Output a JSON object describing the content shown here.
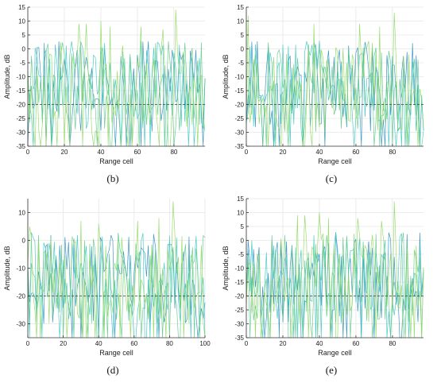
{
  "colors": {
    "series_a": "#2a8fc0",
    "series_b": "#3cc7c2",
    "series_c": "#8fd95f",
    "series_d": "#5fc98a",
    "grid": "#e6e6e6",
    "threshold": "#444444",
    "axis": "#333333"
  },
  "chart_data": [
    {
      "type": "line",
      "panel_label": "(b)",
      "xlabel": "Range cell",
      "ylabel": "Amplitude, dB",
      "xlim": [
        0,
        97
      ],
      "ylim": [
        -35,
        15
      ],
      "xticks": [
        0,
        20,
        40,
        60,
        80
      ],
      "yticks": [
        -35,
        -30,
        -25,
        -20,
        -15,
        -10,
        -5,
        0,
        5,
        10,
        15
      ],
      "grid": true,
      "threshold": -20,
      "peaks": [
        {
          "x": 28,
          "y": 9
        },
        {
          "x": 32,
          "y": 9
        },
        {
          "x": 40,
          "y": 10
        },
        {
          "x": 45,
          "y": 8
        },
        {
          "x": 62,
          "y": 8
        },
        {
          "x": 74,
          "y": 7
        },
        {
          "x": 81,
          "y": 14
        }
      ],
      "seed": 11
    },
    {
      "type": "line",
      "panel_label": "(c)",
      "xlabel": "Range cell",
      "ylabel": "Amplitude, dB",
      "xlim": [
        0,
        97
      ],
      "ylim": [
        -35,
        15
      ],
      "xticks": [
        0,
        20,
        40,
        60,
        80
      ],
      "yticks": [
        -35,
        -30,
        -25,
        -20,
        -15,
        -10,
        -5,
        0,
        5,
        10,
        15
      ],
      "grid": true,
      "threshold": -20,
      "peaks": [
        {
          "x": 1,
          "y": 12
        },
        {
          "x": 37,
          "y": 9
        },
        {
          "x": 62,
          "y": 9
        },
        {
          "x": 73,
          "y": 8
        },
        {
          "x": 81,
          "y": 13
        }
      ],
      "seed": 23
    },
    {
      "type": "line",
      "panel_label": "(d)",
      "xlabel": "Range cell",
      "ylabel": "Amplitude, dB",
      "xlim": [
        0,
        100
      ],
      "ylim": [
        -35,
        15
      ],
      "xticks": [
        0,
        20,
        40,
        60,
        80,
        100
      ],
      "yticks": [
        -30,
        -20,
        -10,
        0,
        10
      ],
      "grid": true,
      "threshold": -20,
      "peaks": [
        {
          "x": 1,
          "y": 5
        },
        {
          "x": 30,
          "y": 7
        },
        {
          "x": 40,
          "y": 6
        },
        {
          "x": 62,
          "y": 7
        },
        {
          "x": 74,
          "y": 8
        },
        {
          "x": 82,
          "y": 14
        }
      ],
      "seed": 37
    },
    {
      "type": "line",
      "panel_label": "(e)",
      "xlabel": "Range cell",
      "ylabel": "Amplitude, dB",
      "xlim": [
        0,
        97
      ],
      "ylim": [
        -35,
        15
      ],
      "xticks": [
        0,
        20,
        40,
        60,
        80
      ],
      "yticks": [
        -35,
        -30,
        -25,
        -20,
        -15,
        -10,
        -5,
        0,
        5,
        10,
        15
      ],
      "grid": true,
      "threshold": -20,
      "peaks": [
        {
          "x": 28,
          "y": 9
        },
        {
          "x": 32,
          "y": 9
        },
        {
          "x": 40,
          "y": 10
        },
        {
          "x": 45,
          "y": 8
        },
        {
          "x": 61,
          "y": 8
        },
        {
          "x": 74,
          "y": 7
        },
        {
          "x": 81,
          "y": 14
        }
      ],
      "seed": 53
    }
  ]
}
